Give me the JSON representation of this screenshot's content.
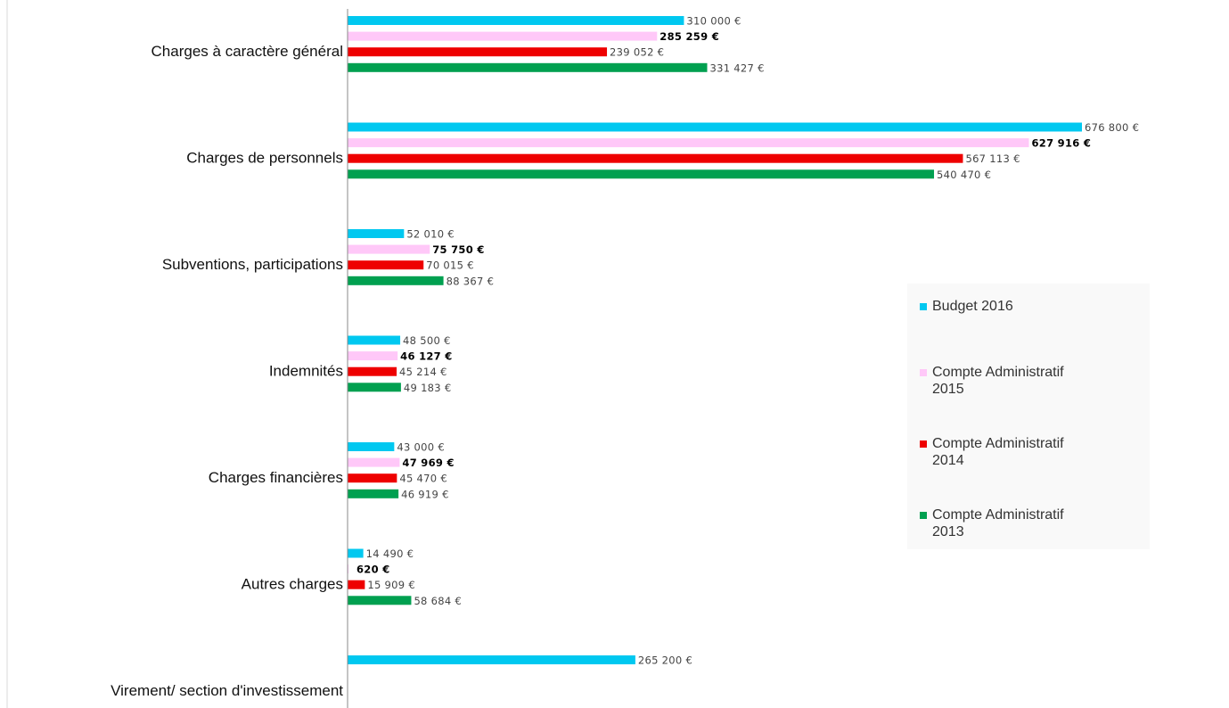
{
  "chart_data": {
    "type": "bar",
    "orientation": "horizontal",
    "categories": [
      "Charges à caractère général",
      "Charges de personnels",
      "Subventions, participations",
      "Indemnités",
      "Charges financières",
      "Autres charges",
      "Virement/ section d'investissement"
    ],
    "series": [
      {
        "name": "Budget 2016",
        "color": "#00c8f0",
        "values": [
          310000,
          676800,
          52010,
          48500,
          43000,
          14490,
          265200
        ],
        "labels": [
          "310 000 €",
          "676 800 €",
          "52 010 €",
          "48 500 €",
          "43 000 €",
          "14 490 €",
          "265 200 €"
        ]
      },
      {
        "name": "Compte Administratif 2015",
        "color": "#ffc8f8",
        "values": [
          285259,
          627916,
          75750,
          46127,
          47969,
          620,
          null
        ],
        "labels": [
          "285 259 €",
          "627 916 €",
          "75 750 €",
          "46 127 €",
          "47 969 €",
          "620 €",
          ""
        ]
      },
      {
        "name": "Compte Administratif 2014",
        "color": "#ee0000",
        "values": [
          239052,
          567113,
          70015,
          45214,
          45470,
          15909,
          null
        ],
        "labels": [
          "239 052 €",
          "567 113 €",
          "70 015 €",
          "45 214 €",
          "45 470 €",
          "15 909 €",
          ""
        ]
      },
      {
        "name": "Compte Administratif 2013",
        "color": "#00a050",
        "values": [
          331427,
          540470,
          88367,
          49183,
          46919,
          58684,
          null
        ],
        "labels": [
          "331 427 €",
          "540 470 €",
          "88 367 €",
          "49 183 €",
          "46 919 €",
          "58 684 €",
          ""
        ]
      }
    ],
    "bold_label_series": "Compte Administratif 2015",
    "xlim": [
      0,
      700000
    ],
    "grid": false,
    "title": "",
    "xlabel": "",
    "ylabel": "",
    "legend_position": "right",
    "legend": [
      {
        "lines": [
          "Budget 2016"
        ],
        "color": "#00c8f0"
      },
      {
        "lines": [
          "Compte Administratif",
          "2015"
        ],
        "color": "#ffc8f8"
      },
      {
        "lines": [
          "Compte Administratif",
          "2014"
        ],
        "color": "#ee0000"
      },
      {
        "lines": [
          "Compte Administratif",
          "2013"
        ],
        "color": "#00a050"
      }
    ]
  }
}
